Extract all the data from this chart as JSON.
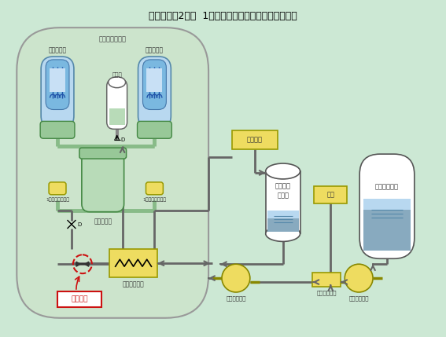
{
  "title": "伊方発電所2号機  1次冷却水充てん・抽出系統概略図",
  "bg_color": "#cce8d4",
  "containment_bg": "#cce4cc",
  "green_pipe": "#88bb88",
  "gray_pipe": "#666666",
  "green_fill": "#98c898",
  "light_green": "#b8dbb8",
  "yellow_fill": "#eedc60",
  "blue_dark": "#7ab8e0",
  "blue_light": "#b8d8f0",
  "white_fill": "#ffffff",
  "red_color": "#cc1111",
  "labels": {
    "title": "伊方発電所2号機  1次冷却水充てん・抽出系統概略図",
    "containment": "原子炉格納容器",
    "steam_gen_L": "蒸気発生器",
    "steam_gen_R": "蒸気発生器",
    "pressurizer": "加圧器",
    "reactor": "原子炉容器",
    "pump_L": "1次冷却材ポンプ",
    "pump_R": "1次冷却材ポンプ",
    "regen_hx": "再生熱交換器",
    "purification": "浄化設備",
    "volume_tank": "体積制御\nタンク",
    "pure_water": "純水",
    "boric_mixer": "ほう酸混合器",
    "boric_pump": "ほう酸ポンプ",
    "boric_tank": "ほう酸タンク",
    "charging_pump": "充てんポンプ",
    "target": "当該箇所"
  }
}
